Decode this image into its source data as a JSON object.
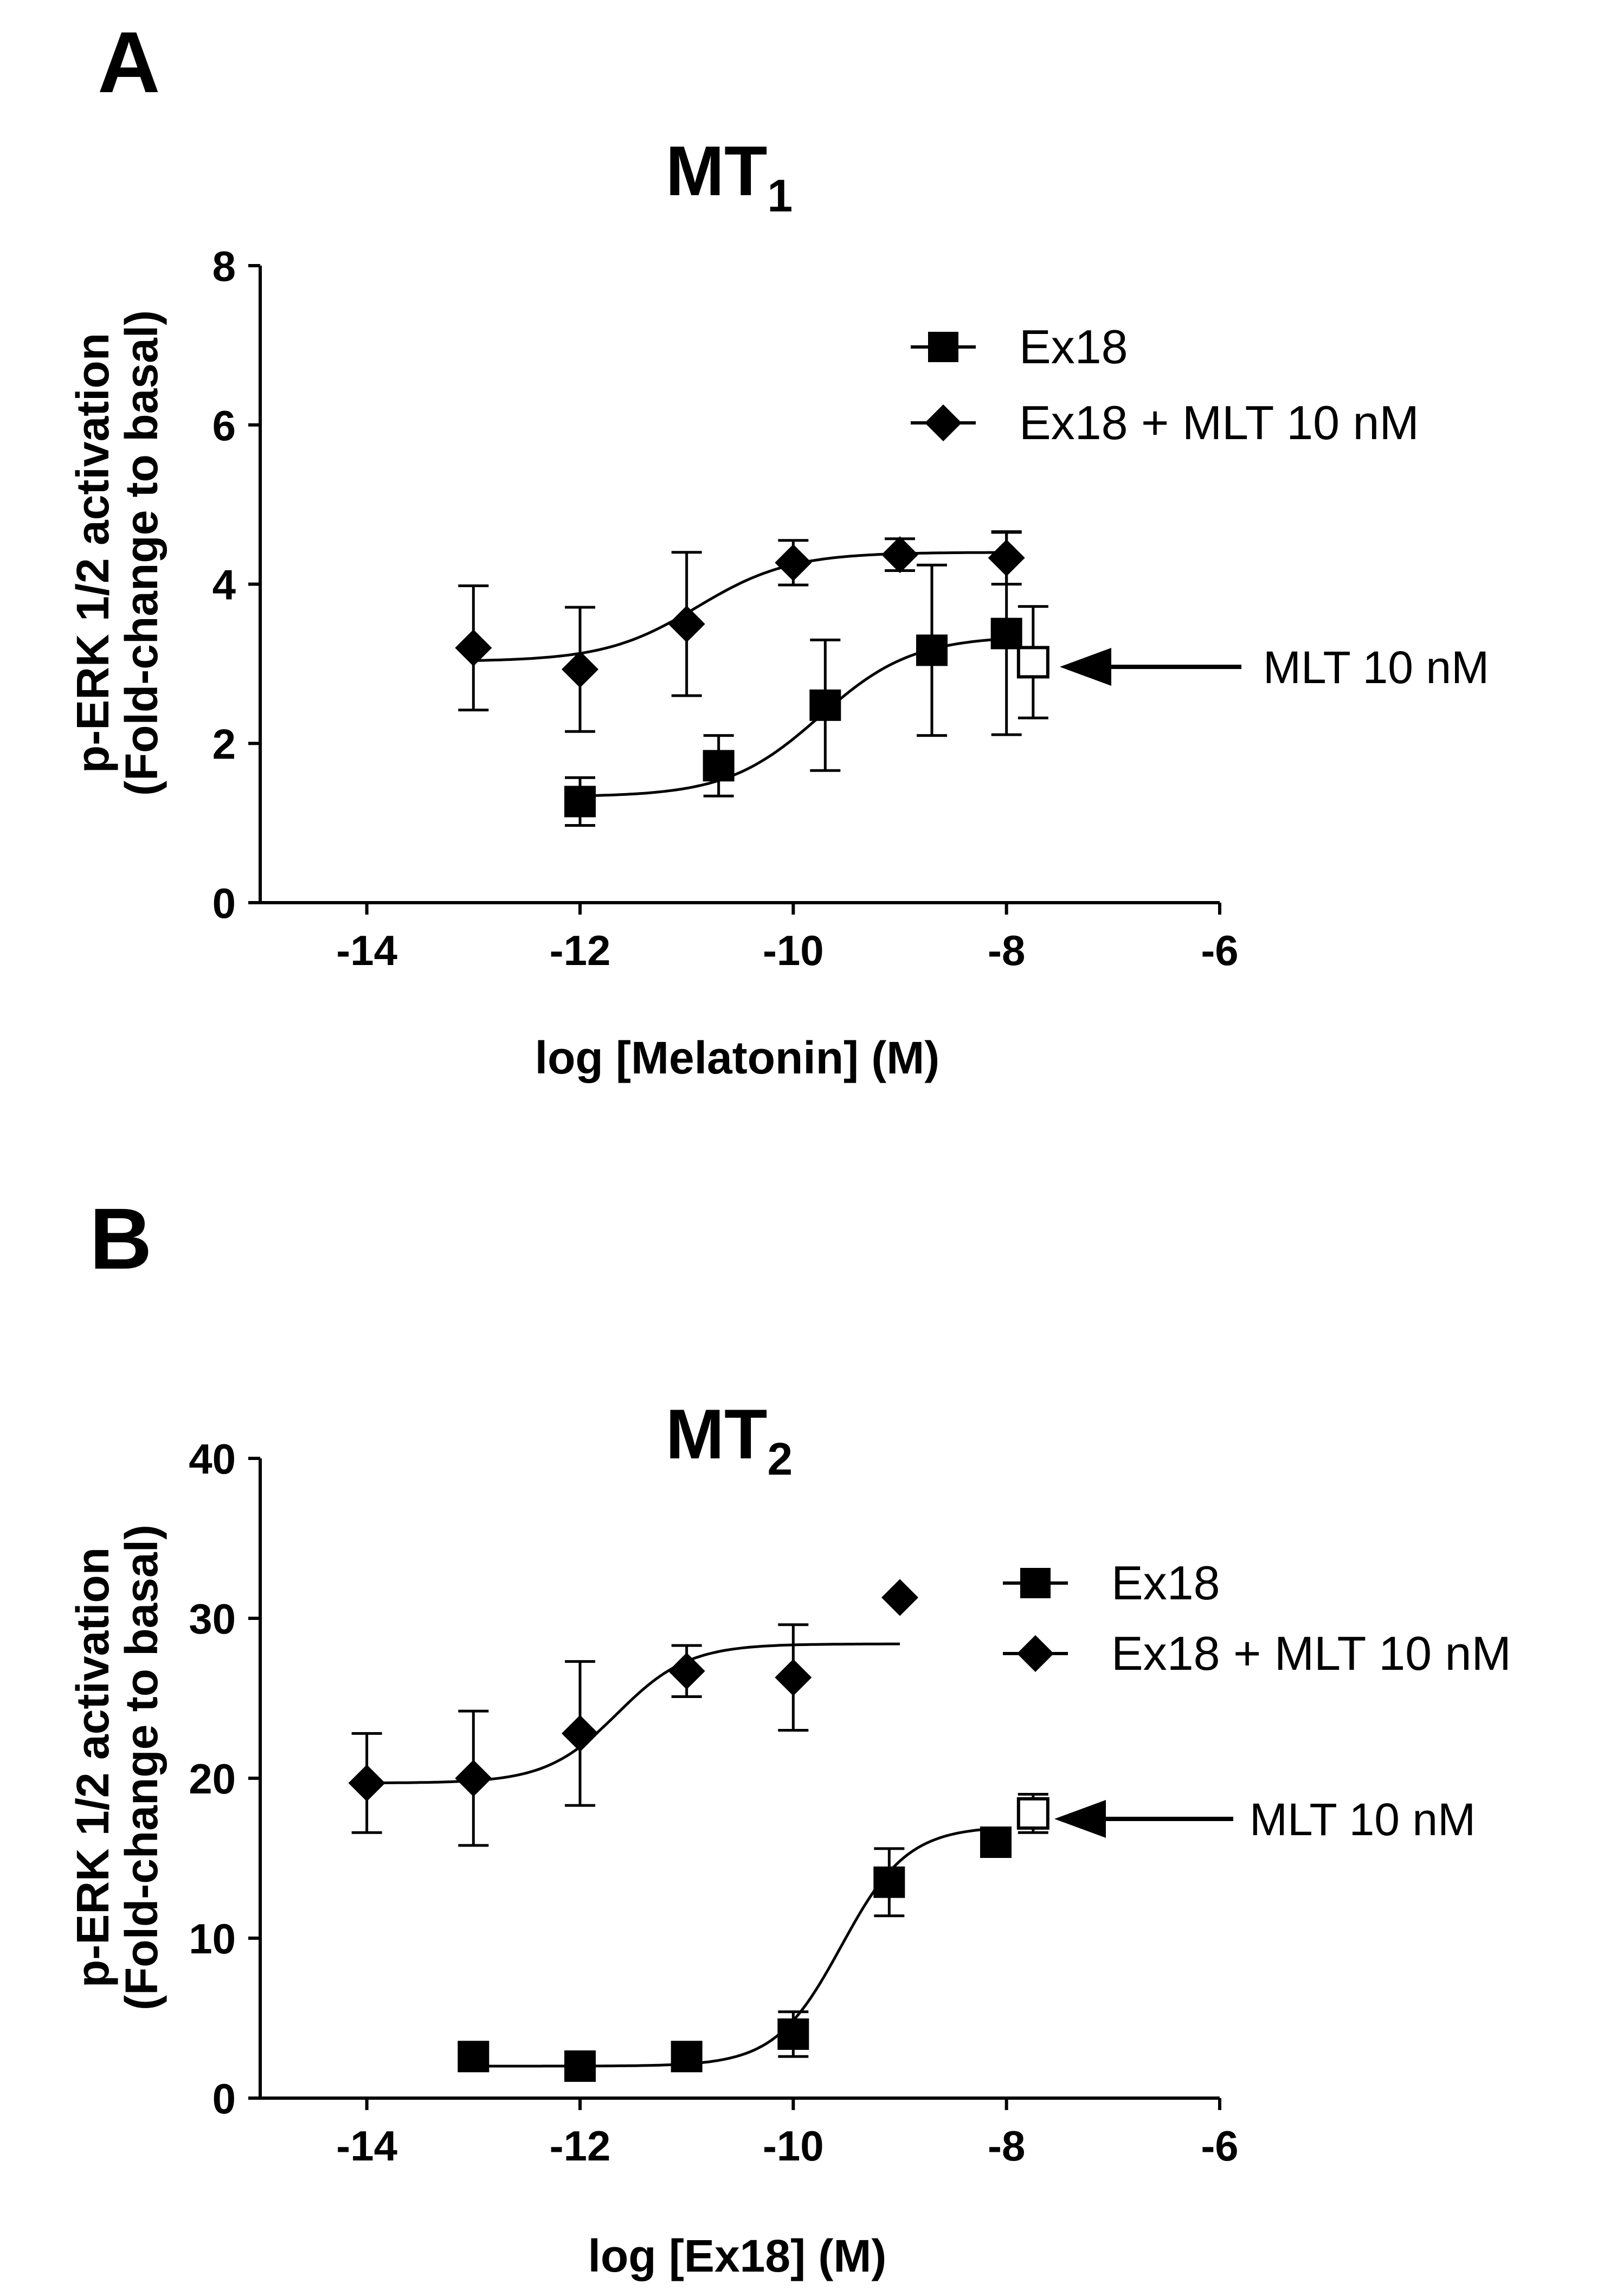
{
  "figure": {
    "background": "#ffffff",
    "ink": "#000000"
  },
  "chart_data": [
    {
      "type": "scatter",
      "panel_label": "A",
      "title": "MT",
      "title_subscript": "1",
      "xlabel": "log [Melatonin] (M)",
      "ylabel_line1": "p-ERK 1/2 activation",
      "ylabel_line2": "(Fold-change to basal)",
      "xlim": [
        -15,
        -6
      ],
      "ylim": [
        0,
        8
      ],
      "xticks": [
        -14,
        -12,
        -10,
        -8,
        -6
      ],
      "yticks": [
        0,
        2,
        4,
        6,
        8
      ],
      "tick_labels_x": [
        "-14",
        "-12",
        "-10",
        "-8",
        "-6"
      ],
      "tick_labels_y": [
        "0",
        "2",
        "4",
        "6",
        "8"
      ],
      "grid": false,
      "legend_position": "top-right",
      "series": [
        {
          "name": "Ex18",
          "marker": "square",
          "points": [
            {
              "x": -12.0,
              "y": 1.27,
              "err": 0.3
            },
            {
              "x": -10.7,
              "y": 1.72,
              "err": 0.38
            },
            {
              "x": -9.7,
              "y": 2.48,
              "err": 0.82
            },
            {
              "x": -8.7,
              "y": 3.17,
              "err": 1.07
            },
            {
              "x": -8.0,
              "y": 3.38,
              "err": 1.27
            }
          ],
          "fit": {
            "bottom": 1.33,
            "top": 3.35,
            "logec50": -9.75,
            "hill": 1.0,
            "x_from": -12.0,
            "x_to": -8.0
          }
        },
        {
          "name": "Ex18 + MLT 10 nM",
          "marker": "diamond",
          "points": [
            {
              "x": -13.0,
              "y": 3.2,
              "err": 0.78
            },
            {
              "x": -12.0,
              "y": 2.93,
              "err": 0.78
            },
            {
              "x": -11.0,
              "y": 3.5,
              "err": 0.9
            },
            {
              "x": -10.0,
              "y": 4.27,
              "err": 0.28
            },
            {
              "x": -9.0,
              "y": 4.37,
              "err": 0.2
            },
            {
              "x": -8.0,
              "y": 4.33,
              "err": 0.33
            }
          ],
          "fit": {
            "bottom": 3.03,
            "top": 4.4,
            "logec50": -10.9,
            "hill": 1.0,
            "x_from": -13.0,
            "x_to": -8.0
          }
        }
      ],
      "reference_point": {
        "name": "MLT 10 nM",
        "x": -7.75,
        "y": 3.02,
        "err": 0.7,
        "marker": "open-square"
      },
      "annotation": "MLT 10 nM"
    },
    {
      "type": "scatter",
      "panel_label": "B",
      "title": "MT",
      "title_subscript": "2",
      "xlabel": "log [Ex18] (M)",
      "ylabel_line1": "p-ERK 1/2 activation",
      "ylabel_line2": "(Fold-change to basal)",
      "xlim": [
        -15,
        -6
      ],
      "ylim": [
        0,
        40
      ],
      "xticks": [
        -14,
        -12,
        -10,
        -8,
        -6
      ],
      "yticks": [
        0,
        10,
        20,
        30,
        40
      ],
      "tick_labels_x": [
        "-14",
        "-12",
        "-10",
        "-8",
        "-6"
      ],
      "tick_labels_y": [
        "0",
        "10",
        "20",
        "30",
        "40"
      ],
      "grid": false,
      "legend_position": "top-right",
      "series": [
        {
          "name": "Ex18",
          "marker": "square",
          "points": [
            {
              "x": -13.0,
              "y": 2.6,
              "err": 0.0
            },
            {
              "x": -12.0,
              "y": 2.0,
              "err": 0.0
            },
            {
              "x": -11.0,
              "y": 2.6,
              "err": 0.0
            },
            {
              "x": -10.0,
              "y": 4.0,
              "err": 1.4
            },
            {
              "x": -9.1,
              "y": 13.5,
              "err": 2.1
            },
            {
              "x": -8.1,
              "y": 16.0,
              "err": 0.0
            }
          ],
          "fit": {
            "bottom": 2.0,
            "top": 17.0,
            "logec50": -9.55,
            "hill": 1.4,
            "x_from": -13.0,
            "x_to": -8.0
          }
        },
        {
          "name": "Ex18 + MLT 10 nM",
          "marker": "diamond",
          "points": [
            {
              "x": -14.0,
              "y": 19.7,
              "err": 3.1
            },
            {
              "x": -13.0,
              "y": 20.0,
              "err": 4.2
            },
            {
              "x": -12.0,
              "y": 22.8,
              "err": 4.5
            },
            {
              "x": -11.0,
              "y": 26.7,
              "err": 1.6
            },
            {
              "x": -10.0,
              "y": 26.3,
              "err": 3.3
            },
            {
              "x": -9.0,
              "y": 31.3,
              "err": 0.0
            }
          ],
          "fit": {
            "bottom": 19.7,
            "top": 28.4,
            "logec50": -11.65,
            "hill": 1.3,
            "x_from": -14.0,
            "x_to": -9.0
          }
        }
      ],
      "reference_point": {
        "name": "MLT 10 nM",
        "x": -7.75,
        "y": 17.8,
        "err": 1.2,
        "marker": "open-square"
      },
      "annotation": "MLT 10 nM"
    }
  ]
}
